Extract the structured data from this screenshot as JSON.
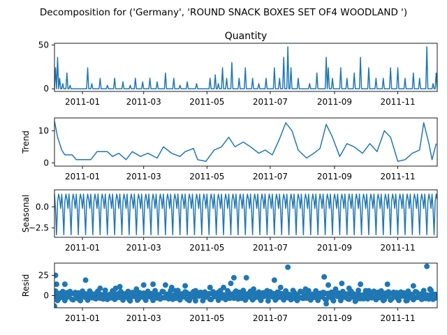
{
  "chart_data": {
    "type": "line",
    "title": "Decomposition for ('Germany', 'ROUND SNACK BOXES SET OF4 WOODLAND ')",
    "x_range": [
      "2010-12-05",
      "2011-12-09"
    ],
    "x_ticks": [
      "2011-01",
      "2011-03",
      "2011-05",
      "2011-07",
      "2011-09",
      "2011-11"
    ],
    "color": "#1f77b4",
    "panels": [
      {
        "name": "observed",
        "title": "Quantity",
        "ylabel": "",
        "type": "line",
        "ylim": [
          -3,
          52
        ],
        "yticks": [
          "0",
          "50"
        ],
        "ytick_values": [
          0,
          50
        ],
        "spikes": [
          [
            "2010-12-05",
            0
          ],
          [
            "2010-12-06",
            24
          ],
          [
            "2010-12-07",
            0
          ],
          [
            "2010-12-08",
            36
          ],
          [
            "2010-12-10",
            12
          ],
          [
            "2010-12-13",
            6
          ],
          [
            "2010-12-17",
            18
          ],
          [
            "2010-12-20",
            4
          ],
          [
            "2011-01-06",
            24
          ],
          [
            "2011-01-10",
            6
          ],
          [
            "2011-01-18",
            12
          ],
          [
            "2011-01-25",
            4
          ],
          [
            "2011-02-01",
            12
          ],
          [
            "2011-02-09",
            8
          ],
          [
            "2011-02-16",
            4
          ],
          [
            "2011-02-21",
            12
          ],
          [
            "2011-02-28",
            8
          ],
          [
            "2011-03-07",
            12
          ],
          [
            "2011-03-14",
            8
          ],
          [
            "2011-03-22",
            18
          ],
          [
            "2011-03-30",
            12
          ],
          [
            "2011-04-05",
            4
          ],
          [
            "2011-04-12",
            8
          ],
          [
            "2011-04-21",
            6
          ],
          [
            "2011-05-04",
            12
          ],
          [
            "2011-05-09",
            16
          ],
          [
            "2011-05-12",
            6
          ],
          [
            "2011-05-16",
            24
          ],
          [
            "2011-05-20",
            12
          ],
          [
            "2011-05-25",
            30
          ],
          [
            "2011-06-01",
            12
          ],
          [
            "2011-06-07",
            24
          ],
          [
            "2011-06-14",
            12
          ],
          [
            "2011-06-20",
            6
          ],
          [
            "2011-06-27",
            12
          ],
          [
            "2011-07-05",
            24
          ],
          [
            "2011-07-10",
            12
          ],
          [
            "2011-07-14",
            36
          ],
          [
            "2011-07-18",
            48
          ],
          [
            "2011-07-21",
            24
          ],
          [
            "2011-07-28",
            12
          ],
          [
            "2011-08-08",
            6
          ],
          [
            "2011-08-15",
            18
          ],
          [
            "2011-08-24",
            36
          ],
          [
            "2011-08-26",
            24
          ],
          [
            "2011-08-30",
            12
          ],
          [
            "2011-09-07",
            24
          ],
          [
            "2011-09-13",
            12
          ],
          [
            "2011-09-20",
            18
          ],
          [
            "2011-09-26",
            36
          ],
          [
            "2011-10-04",
            24
          ],
          [
            "2011-10-11",
            12
          ],
          [
            "2011-10-18",
            12
          ],
          [
            "2011-10-25",
            24
          ],
          [
            "2011-11-01",
            24
          ],
          [
            "2011-11-08",
            12
          ],
          [
            "2011-11-16",
            18
          ],
          [
            "2011-11-22",
            12
          ],
          [
            "2011-11-29",
            48
          ],
          [
            "2011-12-05",
            6
          ],
          [
            "2011-12-08",
            18
          ]
        ]
      },
      {
        "name": "trend",
        "title": "",
        "ylabel": "Trend",
        "type": "line",
        "ylim": [
          -1,
          14
        ],
        "yticks": [
          "0",
          "10"
        ],
        "ytick_values": [
          0,
          10
        ],
        "points": [
          [
            "2010-12-05",
            13
          ],
          [
            "2010-12-08",
            8
          ],
          [
            "2010-12-12",
            4
          ],
          [
            "2010-12-15",
            2.5
          ],
          [
            "2010-12-22",
            2.5
          ],
          [
            "2010-12-26",
            1
          ],
          [
            "2011-01-02",
            1
          ],
          [
            "2011-01-09",
            1
          ],
          [
            "2011-01-15",
            3.5
          ],
          [
            "2011-01-25",
            3.5
          ],
          [
            "2011-01-30",
            2
          ],
          [
            "2011-02-05",
            3
          ],
          [
            "2011-02-12",
            1
          ],
          [
            "2011-02-18",
            3.5
          ],
          [
            "2011-02-26",
            2
          ],
          [
            "2011-03-05",
            3
          ],
          [
            "2011-03-14",
            1.5
          ],
          [
            "2011-03-20",
            5
          ],
          [
            "2011-03-28",
            3
          ],
          [
            "2011-04-05",
            2
          ],
          [
            "2011-04-10",
            3.5
          ],
          [
            "2011-04-18",
            4.5
          ],
          [
            "2011-04-22",
            1
          ],
          [
            "2011-04-30",
            0.5
          ],
          [
            "2011-05-08",
            4
          ],
          [
            "2011-05-15",
            5
          ],
          [
            "2011-05-22",
            8
          ],
          [
            "2011-05-28",
            5
          ],
          [
            "2011-06-05",
            6.5
          ],
          [
            "2011-06-12",
            5
          ],
          [
            "2011-06-20",
            3
          ],
          [
            "2011-06-26",
            4
          ],
          [
            "2011-07-03",
            2.5
          ],
          [
            "2011-07-10",
            7.5
          ],
          [
            "2011-07-16",
            12.5
          ],
          [
            "2011-07-22",
            10
          ],
          [
            "2011-07-28",
            4
          ],
          [
            "2011-08-05",
            1.5
          ],
          [
            "2011-08-12",
            3
          ],
          [
            "2011-08-18",
            4.5
          ],
          [
            "2011-08-24",
            12
          ],
          [
            "2011-08-30",
            8
          ],
          [
            "2011-09-06",
            2
          ],
          [
            "2011-09-13",
            6
          ],
          [
            "2011-09-20",
            5
          ],
          [
            "2011-09-28",
            3
          ],
          [
            "2011-10-05",
            6
          ],
          [
            "2011-10-12",
            3.5
          ],
          [
            "2011-10-19",
            10
          ],
          [
            "2011-10-25",
            8
          ],
          [
            "2011-11-01",
            0.5
          ],
          [
            "2011-11-08",
            1
          ],
          [
            "2011-11-15",
            3
          ],
          [
            "2011-11-22",
            4
          ],
          [
            "2011-11-26",
            12.5
          ],
          [
            "2011-12-01",
            6
          ],
          [
            "2011-12-04",
            1
          ],
          [
            "2011-12-08",
            6
          ]
        ]
      },
      {
        "name": "seasonal",
        "title": "",
        "ylabel": "Seasonal",
        "type": "line",
        "ylim": [
          -3.6,
          2.0
        ],
        "yticks": [
          "−2.5",
          "0.0"
        ],
        "ytick_values": [
          -2.5,
          0
        ],
        "period_days": 7,
        "weekly_pattern": [
          1.5,
          -0.3,
          -3.3,
          0.6,
          1.5,
          0.9,
          -0.2
        ]
      },
      {
        "name": "resid",
        "title": "",
        "ylabel": "Resid",
        "type": "scatter",
        "ylim": [
          -15,
          40
        ],
        "yticks": [
          "0",
          "25"
        ],
        "ytick_values": [
          0,
          25
        ],
        "points": [
          [
            "2010-12-05",
            -13
          ],
          [
            "2010-12-06",
            25
          ],
          [
            "2010-12-07",
            14
          ],
          [
            "2010-12-09",
            -4
          ],
          [
            "2010-12-12",
            -2
          ],
          [
            "2010-12-15",
            14
          ],
          [
            "2010-12-20",
            5
          ],
          [
            "2011-01-04",
            19
          ],
          [
            "2011-01-18",
            9
          ],
          [
            "2011-02-02",
            9
          ],
          [
            "2011-02-06",
            11
          ],
          [
            "2011-02-22",
            8
          ],
          [
            "2011-03-01",
            13
          ],
          [
            "2011-03-10",
            14
          ],
          [
            "2011-03-22",
            13
          ],
          [
            "2011-03-28",
            10
          ],
          [
            "2011-04-01",
            6
          ],
          [
            "2011-04-10",
            12
          ],
          [
            "2011-04-20",
            6
          ],
          [
            "2011-05-04",
            10
          ],
          [
            "2011-05-12",
            4
          ],
          [
            "2011-05-17",
            10
          ],
          [
            "2011-05-24",
            15
          ],
          [
            "2011-05-27",
            22
          ],
          [
            "2011-06-01",
            4
          ],
          [
            "2011-06-08",
            22
          ],
          [
            "2011-06-15",
            8
          ],
          [
            "2011-06-28",
            6
          ],
          [
            "2011-07-05",
            19
          ],
          [
            "2011-07-11",
            10
          ],
          [
            "2011-07-18",
            35
          ],
          [
            "2011-07-24",
            4
          ],
          [
            "2011-08-04",
            8
          ],
          [
            "2011-08-22",
            23
          ],
          [
            "2011-08-24",
            -10
          ],
          [
            "2011-08-26",
            13
          ],
          [
            "2011-09-02",
            8
          ],
          [
            "2011-09-08",
            15
          ],
          [
            "2011-09-15",
            9
          ],
          [
            "2011-09-26",
            14
          ],
          [
            "2011-10-04",
            6
          ],
          [
            "2011-10-13",
            4
          ],
          [
            "2011-10-22",
            14
          ],
          [
            "2011-10-28",
            4
          ],
          [
            "2011-11-04",
            4
          ],
          [
            "2011-11-16",
            12
          ],
          [
            "2011-11-25",
            -4
          ],
          [
            "2011-11-29",
            36
          ],
          [
            "2011-12-02",
            8
          ],
          [
            "2011-12-07",
            -3
          ],
          [
            "2010-12-28",
            -4
          ],
          [
            "2011-01-12",
            -2
          ],
          [
            "2011-02-15",
            -5
          ],
          [
            "2011-03-16",
            -3
          ],
          [
            "2011-04-14",
            -6
          ],
          [
            "2011-05-31",
            -4
          ],
          [
            "2011-06-22",
            -5
          ],
          [
            "2011-07-27",
            -6
          ],
          [
            "2011-08-30",
            -4
          ],
          [
            "2011-09-21",
            -7
          ],
          [
            "2011-10-19",
            -5
          ],
          [
            "2011-11-10",
            -6
          ]
        ]
      }
    ]
  }
}
